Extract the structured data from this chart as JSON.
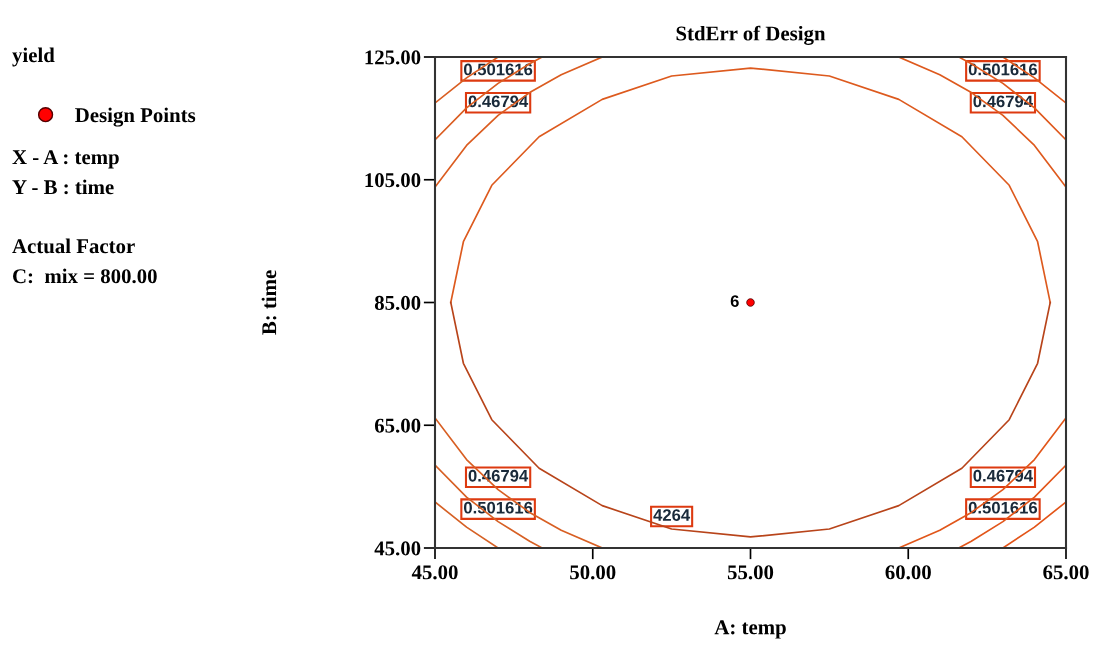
{
  "chart_data": {
    "type": "line",
    "title": "StdErr of Design",
    "xlabel": "A: temp",
    "ylabel": "B: time",
    "xlim": [
      45,
      65
    ],
    "ylim": [
      45,
      125
    ],
    "xticks": [
      {
        "value": 45,
        "label": "45.00"
      },
      {
        "value": 50,
        "label": "50.00"
      },
      {
        "value": 55,
        "label": "55.00"
      },
      {
        "value": 60,
        "label": "60.00"
      },
      {
        "value": 65,
        "label": "65.00"
      }
    ],
    "yticks": [
      {
        "value": 45,
        "label": "45.00"
      },
      {
        "value": 65,
        "label": "65.00"
      },
      {
        "value": 85,
        "label": "85.00"
      },
      {
        "value": 105,
        "label": "105.00"
      },
      {
        "value": 125,
        "label": "125.00"
      }
    ],
    "grid": false,
    "legend": "left",
    "marker": "none",
    "line_style": "solid",
    "series": [
      {
        "color": "#dd5a1e",
        "x": [
          45.5,
          45.9,
          46.8,
          48.3,
          50.3,
          52.5,
          55,
          57.5,
          59.7,
          61.7,
          63.2,
          64.1,
          64.5
        ],
        "values": [
          85,
          94.9,
          104.1,
          112.0,
          118.1,
          121.9,
          123.2,
          121.9,
          118.1,
          112.0,
          104.1,
          94.9,
          85
        ]
      },
      {
        "color": "#b8441a",
        "x": [
          45.5,
          45.9,
          46.8,
          48.3,
          50.3,
          52.5,
          55,
          57.5,
          59.7,
          61.7,
          63.2,
          64.1,
          64.5
        ],
        "values": [
          85,
          75.1,
          65.9,
          58.0,
          51.9,
          48.1,
          46.8,
          48.1,
          51.9,
          58.0,
          65.9,
          75.1,
          85
        ]
      },
      {
        "color": "#db5c20",
        "x": [
          45,
          46,
          47,
          48,
          49,
          50.3
        ],
        "values": [
          103.8,
          110.6,
          115.5,
          119.2,
          122.1,
          125
        ]
      },
      {
        "color": "#da5d21",
        "x": [
          45,
          46,
          47,
          48,
          48.4
        ],
        "values": [
          111.5,
          116.7,
          120.7,
          123.9,
          125
        ]
      },
      {
        "color": "#d95e22",
        "x": [
          45,
          46,
          47
        ],
        "values": [
          117.5,
          121.6,
          125
        ]
      },
      {
        "color": "#de591d",
        "x": [
          59.7,
          61,
          62,
          63,
          64,
          65
        ],
        "values": [
          125,
          122.1,
          119.2,
          115.5,
          110.6,
          103.8
        ]
      },
      {
        "color": "#df581c",
        "x": [
          61.6,
          62,
          63,
          64,
          65
        ],
        "values": [
          125,
          123.9,
          120.7,
          116.7,
          111.5
        ]
      },
      {
        "color": "#e0571b",
        "x": [
          63,
          64,
          65
        ],
        "values": [
          125,
          121.6,
          117.5
        ]
      },
      {
        "color": "#d85f23",
        "x": [
          45,
          46,
          47,
          48,
          49,
          50.3
        ],
        "values": [
          66.2,
          59.4,
          54.5,
          50.8,
          47.9,
          45
        ]
      },
      {
        "color": "#d76024",
        "x": [
          45,
          46,
          47,
          48,
          48.4
        ],
        "values": [
          58.5,
          53.3,
          49.3,
          46.1,
          45
        ]
      },
      {
        "color": "#d66125",
        "x": [
          45,
          46,
          47
        ],
        "values": [
          52.5,
          48.4,
          45
        ]
      },
      {
        "color": "#e1561a",
        "x": [
          59.7,
          61,
          62,
          63,
          64,
          65
        ],
        "values": [
          45,
          47.9,
          50.8,
          54.5,
          59.4,
          66.2
        ]
      },
      {
        "color": "#e25519",
        "x": [
          61.6,
          62,
          63,
          64,
          65
        ],
        "values": [
          45,
          46.1,
          49.3,
          53.3,
          58.5
        ]
      },
      {
        "color": "#e35418",
        "x": [
          63,
          64,
          65
        ],
        "values": [
          45,
          48.4,
          52.5
        ]
      },
      {
        "type": "scatter",
        "name": "Design Points",
        "color": "#ff0000",
        "marker": "circle",
        "x": [
          55
        ],
        "values": [
          85
        ]
      }
    ],
    "annotations": [
      "yield",
      "X - A : temp",
      "Y - B : time",
      "Actual Factor",
      "C:  mix = 800.00",
      {
        "text": "6",
        "x": 55,
        "y": 85
      },
      {
        "text": "0.501616",
        "x": 47,
        "y": 120.7
      },
      {
        "text": "0.46794",
        "x": 47,
        "y": 115.5
      },
      {
        "text": "0.501616",
        "x": 63,
        "y": 120.7
      },
      {
        "text": "0.46794",
        "x": 63,
        "y": 115.5
      },
      {
        "text": "0.46794",
        "x": 47,
        "y": 54.5
      },
      {
        "text": "0.501616",
        "x": 47,
        "y": 49.3
      },
      {
        "text": "4264",
        "x": 52.5,
        "y": 48.1
      },
      {
        "text": "0.46794",
        "x": 63,
        "y": 54.5
      },
      {
        "text": "0.501616",
        "x": 63,
        "y": 49.3
      }
    ]
  }
}
